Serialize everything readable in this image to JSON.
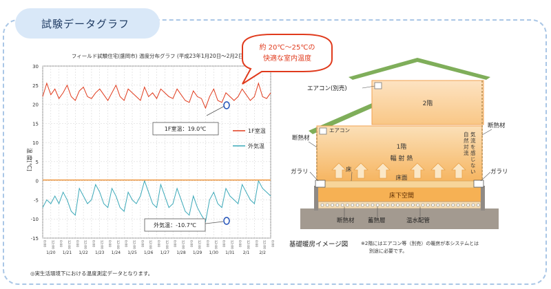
{
  "section_title": "試験データグラフ",
  "chart_data": {
    "type": "line",
    "title": "フィールド試験住宅(盛岡市) 温度分布グラフ (平成23年1月20日～2月2日)",
    "ylabel": "温 度[℃]",
    "ylim": [
      -15,
      30
    ],
    "yticks": [
      30,
      25,
      20,
      15,
      10,
      5,
      0,
      -5,
      -10,
      -15
    ],
    "xlim": [
      0,
      14
    ],
    "date_labels": [
      "1/20",
      "1/21",
      "1/22",
      "1/23",
      "1/24",
      "1/25",
      "1/26",
      "1/27",
      "1/28",
      "1/29",
      "1/30",
      "1/31",
      "2/1",
      "2/2"
    ],
    "time_tick_labels": [
      "0:00",
      "12:00"
    ],
    "grid": true,
    "legend": "right",
    "series": [
      {
        "name": "1F室温",
        "color": "#e03a1c",
        "x": [
          0,
          0.25,
          0.5,
          0.75,
          1,
          1.25,
          1.5,
          1.75,
          2,
          2.25,
          2.5,
          2.75,
          3,
          3.25,
          3.5,
          3.75,
          4,
          4.25,
          4.5,
          4.75,
          5,
          5.25,
          5.5,
          5.75,
          6,
          6.25,
          6.5,
          6.75,
          7,
          7.25,
          7.5,
          7.75,
          8,
          8.25,
          8.5,
          8.75,
          9,
          9.25,
          9.5,
          9.75,
          10,
          10.25,
          10.5,
          10.75,
          11,
          11.25,
          11.5,
          11.75,
          12,
          12.25,
          12.5,
          12.75,
          13,
          13.25,
          13.5,
          13.75,
          14
        ],
        "y": [
          22,
          25.5,
          22.5,
          24,
          21.5,
          23,
          25,
          22,
          21,
          23.5,
          24.5,
          22,
          21.5,
          23,
          24,
          22.5,
          21,
          23,
          25,
          22,
          21,
          24,
          23,
          22,
          21,
          24.5,
          22,
          23,
          21.5,
          24,
          23,
          22,
          21.5,
          24,
          22.5,
          21,
          20.5,
          23.5,
          22,
          21.5,
          19,
          22,
          24,
          21,
          20.5,
          23,
          22,
          21,
          22,
          24,
          22.5,
          21,
          22,
          25.5,
          22,
          21.5,
          23
        ]
      },
      {
        "name": "外気温",
        "color": "#3aa8b8",
        "x": [
          0,
          0.25,
          0.5,
          0.75,
          1,
          1.25,
          1.5,
          1.75,
          2,
          2.25,
          2.5,
          2.75,
          3,
          3.25,
          3.5,
          3.75,
          4,
          4.25,
          4.5,
          4.75,
          5,
          5.25,
          5.5,
          5.75,
          6,
          6.25,
          6.5,
          6.75,
          7,
          7.25,
          7.5,
          7.75,
          8,
          8.25,
          8.5,
          8.75,
          9,
          9.25,
          9.5,
          9.75,
          10,
          10.25,
          10.5,
          10.75,
          11,
          11.25,
          11.5,
          11.75,
          12,
          12.25,
          12.5,
          12.75,
          13,
          13.25,
          13.5,
          13.75,
          14
        ],
        "y": [
          -7,
          -5,
          -6,
          -4,
          -6,
          -3,
          -5,
          -8,
          -9,
          -2,
          -4,
          -6,
          -5,
          -1,
          -3,
          -6,
          -7,
          -2,
          -4,
          -7,
          -8,
          -3,
          -5,
          -6,
          -4,
          0,
          -3,
          -6,
          -7,
          -1,
          -4,
          -7,
          -6,
          -2,
          -5,
          -8,
          -9,
          -4,
          -7,
          -9,
          -10.7,
          -5,
          -3,
          -6,
          -7,
          -2,
          -4,
          -5,
          -6,
          -1,
          -3,
          -5,
          -6,
          0,
          -2,
          -3,
          -4
        ]
      },
      {
        "name": "",
        "color": "#f0a050",
        "x": [
          0,
          14
        ],
        "y": [
          0.2,
          0.2
        ]
      }
    ],
    "annotations": [
      {
        "text": "1F室温：19.0℃",
        "x": 10,
        "y": 19.0
      },
      {
        "text": "外気温：-10.7℃",
        "x": 10,
        "y": -10.7
      }
    ]
  },
  "callout": {
    "line1": "約 20℃～25℃の",
    "line2": "快適な室内温度"
  },
  "footnote": "◎実生活環境下における温度測定データとなります。",
  "diagram": {
    "caption": "基礎暖房イメージ図",
    "note_line1": "※2階にはエアコン等（別売）の暖房が本システムとは",
    "note_line2": "別途に必要です。",
    "labels": {
      "aircon_sold_separately": "エアコン(別売)",
      "aircon": "エアコン",
      "second_floor": "2階",
      "first_floor": "1階",
      "radiant_heat": "輻 射 熱",
      "floor_surface": "床面",
      "floor": "床",
      "underfloor_space": "床下空間",
      "insulation_left": "断熱材",
      "insulation_right": "断熱材",
      "insulation_bottom": "断熱材",
      "garari_left": "ガラリ",
      "garari_right": "ガラリ",
      "no_draft_1": "気",
      "no_draft_2": "流",
      "no_draft_3": "を",
      "no_draft_4": "感",
      "no_draft_5": "じ",
      "no_draft_6": "な",
      "no_draft_7": "い",
      "natural_conv_1": "自",
      "natural_conv_2": "然",
      "natural_conv_3": "対",
      "natural_conv_4": "流",
      "heat_storage": "蓄熱層",
      "hot_water_pipe": "温水配管"
    }
  }
}
